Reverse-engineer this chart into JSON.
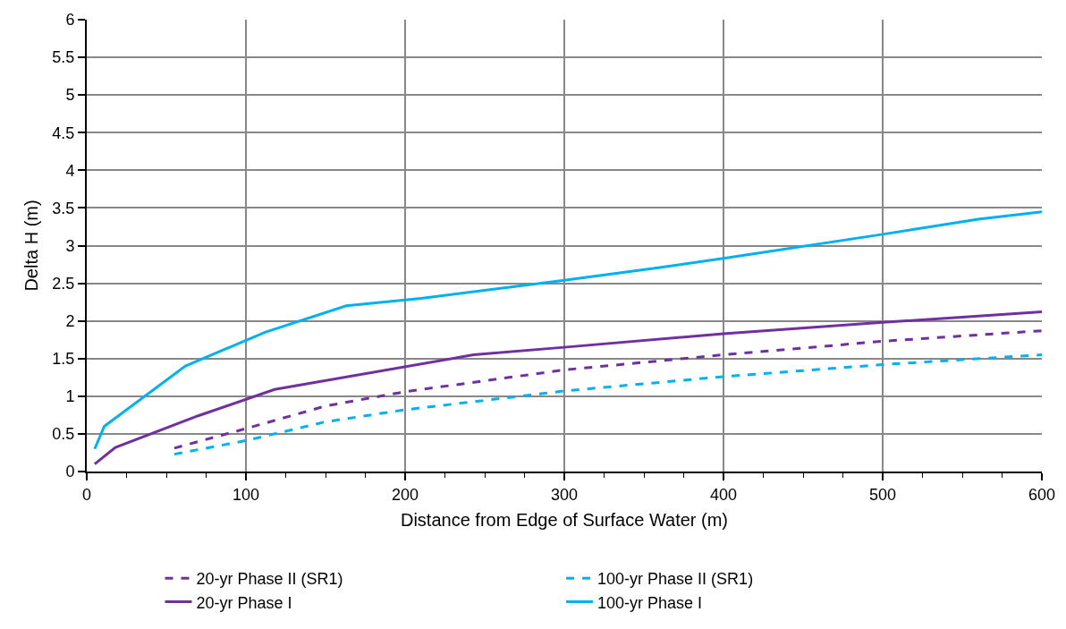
{
  "chart_data": {
    "type": "line",
    "xlabel": "Distance from Edge of Surface Water (m)",
    "ylabel": "Delta H (m)",
    "xlim": [
      0,
      600
    ],
    "ylim": [
      0,
      6
    ],
    "xticks": [
      0,
      {
        "value": 25,
        "label": null
      },
      {
        "value": 50,
        "label": null
      },
      {
        "value": 75,
        "label": null
      },
      100,
      {
        "value": 125,
        "label": null
      },
      {
        "value": 150,
        "label": null
      },
      {
        "value": 175,
        "label": null
      },
      200,
      {
        "value": 225,
        "label": null
      },
      {
        "value": 250,
        "label": null
      },
      {
        "value": 275,
        "label": null
      },
      300,
      {
        "value": 325,
        "label": null
      },
      {
        "value": 350,
        "label": null
      },
      {
        "value": 375,
        "label": null
      },
      400,
      {
        "value": 425,
        "label": null
      },
      {
        "value": 450,
        "label": null
      },
      {
        "value": 475,
        "label": null
      },
      500,
      {
        "value": 525,
        "label": null
      },
      {
        "value": 550,
        "label": null
      },
      {
        "value": 575,
        "label": null
      },
      600
    ],
    "yticks": [
      0,
      0.5,
      1,
      1.5,
      2,
      2.5,
      3,
      3.5,
      4,
      4.5,
      5,
      5.5,
      6
    ],
    "grid": true,
    "legend": "bottom",
    "marker": "none",
    "series": [
      {
        "name": "20-yr Phase II (SR1)",
        "color": "#7030a0",
        "line_style": "dashed",
        "x": [
          55,
          100,
          150,
          200,
          300,
          400,
          500,
          600
        ],
        "values": [
          0.31,
          0.57,
          0.87,
          1.06,
          1.35,
          1.55,
          1.73,
          1.87
        ]
      },
      {
        "name": "100-yr Phase II (SR1)",
        "color": "#00b0f0",
        "line_style": "dashed",
        "x": [
          55,
          100,
          150,
          200,
          300,
          400,
          500,
          600
        ],
        "values": [
          0.23,
          0.41,
          0.66,
          0.82,
          1.07,
          1.26,
          1.42,
          1.55
        ]
      },
      {
        "name": "20-yr Phase I",
        "color": "#7030a0",
        "line_style": "solid",
        "x": [
          5,
          18,
          70,
          118,
          243,
          300,
          400,
          500,
          600
        ],
        "values": [
          0.1,
          0.32,
          0.74,
          1.09,
          1.55,
          1.65,
          1.83,
          1.98,
          2.12
        ]
      },
      {
        "name": "100-yr Phase I",
        "color": "#00b0f0",
        "line_style": "solid",
        "x": [
          5,
          11,
          62,
          112,
          163,
          210,
          300,
          360,
          400,
          500,
          560,
          600
        ],
        "values": [
          0.3,
          0.6,
          1.4,
          1.85,
          2.2,
          2.3,
          2.54,
          2.71,
          2.83,
          3.15,
          3.35,
          3.45
        ]
      }
    ]
  }
}
